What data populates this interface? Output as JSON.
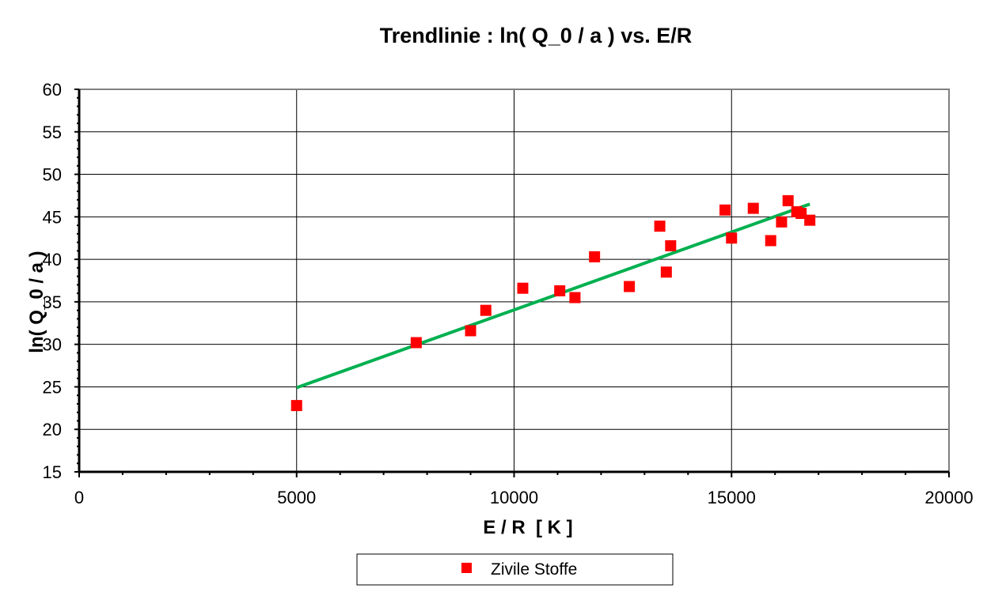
{
  "chart_data": {
    "type": "scatter",
    "title": "Trendlinie : ln( Q_0 / a ) vs. E/R",
    "xlabel": "E / R  [ K ]",
    "ylabel": "ln( Q_0 / a )",
    "xlim": [
      0,
      20000
    ],
    "ylim": [
      15,
      60
    ],
    "x_ticks": [
      0,
      5000,
      10000,
      15000,
      20000
    ],
    "y_ticks": [
      15,
      20,
      25,
      30,
      35,
      40,
      45,
      50,
      55,
      60
    ],
    "grid": true,
    "legend_position": "bottom-center",
    "series": [
      {
        "name": "Zivile Stoffe",
        "marker": "square",
        "color": "#ff0000",
        "points": [
          [
            5000,
            22.8
          ],
          [
            7750,
            30.2
          ],
          [
            9000,
            31.6
          ],
          [
            9350,
            34.0
          ],
          [
            10200,
            36.6
          ],
          [
            11050,
            36.3
          ],
          [
            11400,
            35.5
          ],
          [
            11850,
            40.3
          ],
          [
            12650,
            36.8
          ],
          [
            13350,
            43.9
          ],
          [
            13500,
            38.5
          ],
          [
            13600,
            41.6
          ],
          [
            14850,
            45.8
          ],
          [
            15000,
            42.5
          ],
          [
            15500,
            46.0
          ],
          [
            15900,
            42.2
          ],
          [
            16150,
            44.4
          ],
          [
            16300,
            46.9
          ],
          [
            16500,
            45.6
          ],
          [
            16600,
            45.4
          ],
          [
            16800,
            44.6
          ]
        ]
      }
    ],
    "trendline": {
      "color": "#00b050",
      "points": [
        [
          5000,
          24.9
        ],
        [
          16800,
          46.5
        ]
      ]
    }
  }
}
